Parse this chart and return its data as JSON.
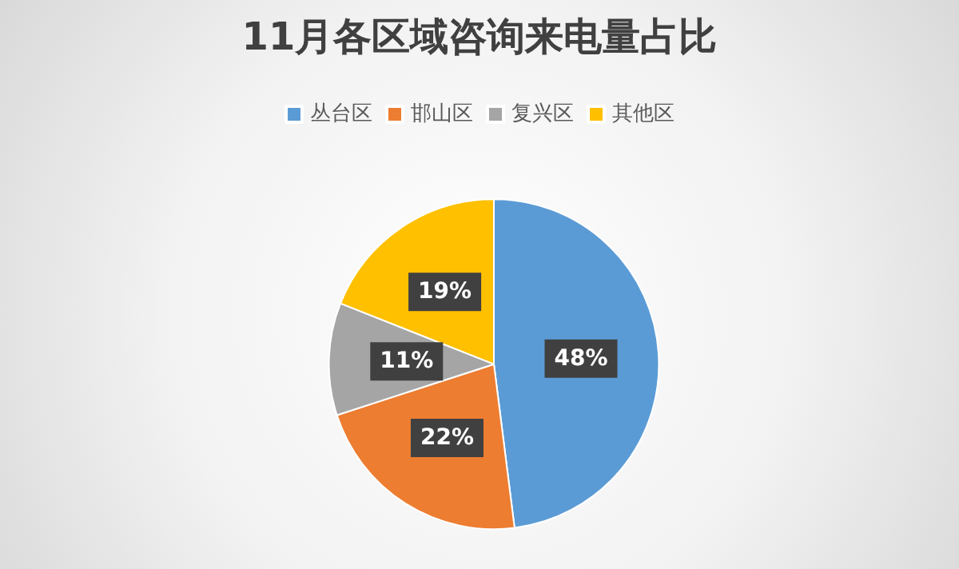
{
  "chart_data": {
    "type": "pie",
    "title": "11月各区域咨询来电量占比",
    "categories": [
      "丛台区",
      "邯山区",
      "复兴区",
      "其他区"
    ],
    "values": [
      48,
      22,
      11,
      19
    ],
    "colors": [
      "#5b9bd5",
      "#ed7d31",
      "#a5a5a5",
      "#ffc000"
    ],
    "value_labels": [
      "48%",
      "22%",
      "11%",
      "19%"
    ],
    "legend": "top"
  }
}
